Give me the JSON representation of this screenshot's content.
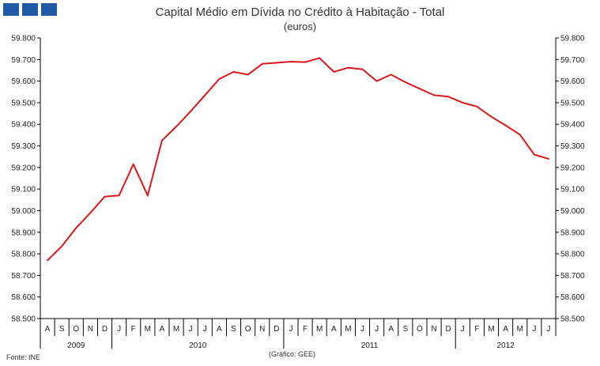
{
  "colors": {
    "line": "#d7191c",
    "logo": "#1f5aa6",
    "axis": "#000000"
  },
  "logo": {
    "icon": "three-blue-squares-icon"
  },
  "source": "Fonte: INE",
  "credit": "(Gráfico: GEE)",
  "chart_data": {
    "type": "line",
    "title": "Capital Médio em Dívida no Crédito à Habitação - Total",
    "subtitle": "(euros)",
    "ylim": [
      58500,
      59800
    ],
    "y_ticks": [
      58500,
      58600,
      58700,
      58800,
      58900,
      59000,
      59100,
      59200,
      59300,
      59400,
      59500,
      59600,
      59700,
      59800
    ],
    "y_tick_labels": [
      "58.500",
      "58.600",
      "58.700",
      "58.800",
      "58.900",
      "59.000",
      "59.100",
      "59.200",
      "59.300",
      "59.400",
      "59.500",
      "59.600",
      "59.700",
      "59.800"
    ],
    "y_axes": [
      "left",
      "right"
    ],
    "grid": false,
    "months": [
      "A",
      "S",
      "O",
      "N",
      "D",
      "J",
      "F",
      "M",
      "A",
      "M",
      "J",
      "J",
      "A",
      "S",
      "O",
      "N",
      "D",
      "J",
      "F",
      "M",
      "A",
      "M",
      "J",
      "J",
      "A",
      "S",
      "O",
      "N",
      "D",
      "J",
      "F",
      "M",
      "A",
      "M",
      "J",
      "J"
    ],
    "years": [
      {
        "label": "2009",
        "start": 0,
        "count": 5
      },
      {
        "label": "2010",
        "start": 5,
        "count": 12
      },
      {
        "label": "2011",
        "start": 17,
        "count": 12
      },
      {
        "label": "2012",
        "start": 29,
        "count": 7
      }
    ],
    "series": [
      {
        "values": [
          58770,
          58835,
          58920,
          58990,
          59065,
          59070,
          59215,
          59070,
          59325,
          59390,
          59460,
          59535,
          59610,
          59643,
          59630,
          59680,
          59685,
          59690,
          59688,
          59707,
          59643,
          59662,
          59655,
          59600,
          59630,
          59595,
          59565,
          59535,
          59528,
          59500,
          59482,
          59435,
          59395,
          59352,
          59260,
          59240
        ]
      }
    ]
  }
}
